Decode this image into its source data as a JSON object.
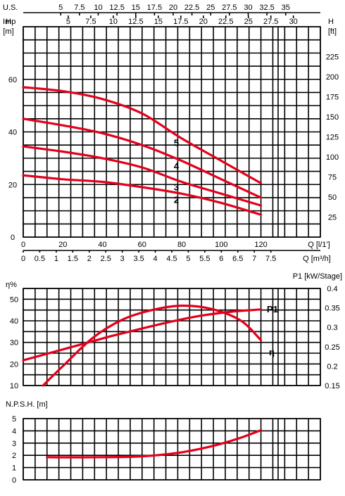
{
  "chart_data": [
    {
      "type": "line",
      "name": "head",
      "top_axis_1": {
        "label": "U.S.",
        "ticks": [
          "5",
          "7.5",
          "10",
          "12.5",
          "15",
          "17.5",
          "20",
          "22.5",
          "25",
          "27.5",
          "30",
          "32.5",
          "35"
        ]
      },
      "top_axis_2": {
        "label": "Imp",
        "ticks": [
          "5",
          "7.5",
          "10",
          "12.5",
          "15",
          "17.5",
          "20",
          "22.5",
          "25",
          "27.5",
          "30"
        ]
      },
      "left_axis": {
        "label": "H",
        "unit": "[m]",
        "ticks": [
          "0",
          "20",
          "40",
          "60"
        ],
        "ylim": [
          0,
          80
        ]
      },
      "right_axis": {
        "label": "H",
        "unit": "[ft]",
        "ticks": [
          "25",
          "50",
          "75",
          "100",
          "125",
          "150",
          "175",
          "200",
          "225"
        ]
      },
      "bottom_axis_1": {
        "label": "Q [l/1']",
        "ticks": [
          "0",
          "20",
          "40",
          "60",
          "80",
          "100",
          "120"
        ],
        "xlim": [
          0,
          150
        ]
      },
      "bottom_axis_2": {
        "label": "Q [m³/h]",
        "ticks": [
          "0",
          "0.5",
          "1",
          "1.5",
          "2",
          "2.5",
          "3",
          "3.5",
          "4",
          "4.5",
          "5",
          "5.5",
          "6",
          "6.5",
          "7",
          "7.5"
        ]
      },
      "series": [
        {
          "name": "5",
          "x": [
            0,
            20,
            40,
            60,
            80,
            100,
            120
          ],
          "y": [
            57,
            55.5,
            52.5,
            47,
            37.5,
            29,
            20.5
          ]
        },
        {
          "name": "4",
          "x": [
            0,
            20,
            40,
            60,
            80,
            100,
            120
          ],
          "y": [
            45,
            42.5,
            39.5,
            35,
            29,
            22,
            15
          ]
        },
        {
          "name": "3",
          "x": [
            0,
            20,
            40,
            60,
            80,
            100,
            120
          ],
          "y": [
            34.5,
            32.5,
            30,
            26.5,
            21,
            16.5,
            12
          ]
        },
        {
          "name": "2",
          "x": [
            0,
            20,
            40,
            60,
            80,
            100,
            120
          ],
          "y": [
            23.5,
            22,
            21,
            19,
            16.5,
            13,
            8.5
          ]
        }
      ]
    },
    {
      "type": "line",
      "name": "efficiency_power",
      "left_axis": {
        "label": "η%",
        "ticks": [
          "10",
          "20",
          "30",
          "40",
          "50"
        ],
        "ylim": [
          10,
          55
        ]
      },
      "right_axis": {
        "label": "P1 [kW/Stage]",
        "ticks": [
          "0.15",
          "0.2",
          "0.25",
          "0.3",
          "0.35",
          "0.4"
        ],
        "ylim": [
          0.15,
          0.4
        ]
      },
      "xlim": [
        0,
        150
      ],
      "series": [
        {
          "name": "η",
          "x": [
            10,
            20,
            35,
            50,
            65,
            80,
            95,
            110,
            120
          ],
          "y": [
            10,
            19,
            32,
            40.5,
            45,
            47,
            45.5,
            40,
            31
          ]
        },
        {
          "name": "P1",
          "x": [
            0,
            15,
            30,
            45,
            60,
            75,
            90,
            105,
            120
          ],
          "y": [
            0.215,
            0.236,
            0.257,
            0.278,
            0.297,
            0.315,
            0.33,
            0.34,
            0.346
          ]
        }
      ]
    },
    {
      "type": "line",
      "name": "npsh",
      "left_axis": {
        "label": "N.P.S.H. [m]",
        "ticks": [
          "0",
          "1",
          "2",
          "3",
          "4",
          "5"
        ],
        "ylim": [
          0,
          5
        ]
      },
      "xlim": [
        0,
        150
      ],
      "series": [
        {
          "x": [
            12,
            20,
            30,
            40,
            50,
            60,
            70,
            80,
            90,
            100,
            110,
            120
          ],
          "y": [
            1.85,
            1.84,
            1.84,
            1.85,
            1.87,
            1.92,
            2.05,
            2.25,
            2.55,
            2.95,
            3.45,
            4.05
          ]
        }
      ]
    }
  ]
}
